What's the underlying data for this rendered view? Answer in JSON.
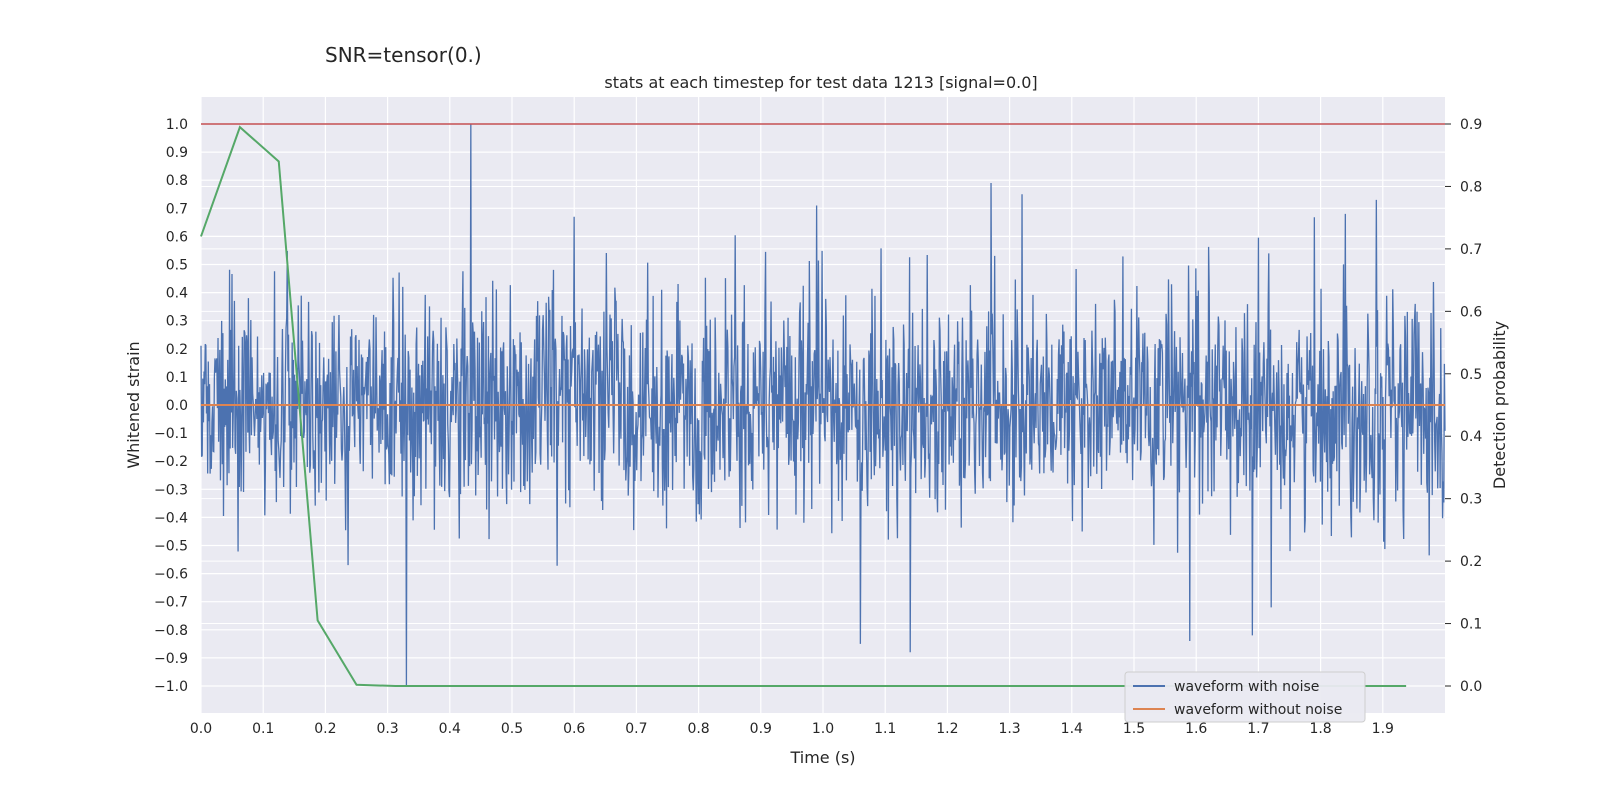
{
  "chart_data": {
    "type": "line",
    "suptitle": "SNR=tensor(0.)",
    "title": "stats at each timestep for test data 1213 [signal=0.0]",
    "xlabel": "Time (s)",
    "ylabel": "Whitened strain",
    "y2label": "Detection probability",
    "xlim": [
      0.0,
      2.0
    ],
    "ylim": [
      -1.1,
      1.1
    ],
    "y2lim": [
      -0.04,
      0.94
    ],
    "xticks": [
      "0.0",
      "0.1",
      "0.2",
      "0.3",
      "0.4",
      "0.5",
      "0.6",
      "0.7",
      "0.8",
      "0.9",
      "1.0",
      "1.1",
      "1.2",
      "1.3",
      "1.4",
      "1.5",
      "1.6",
      "1.7",
      "1.8",
      "1.9"
    ],
    "yticks": [
      "1.0",
      "0.9",
      "0.8",
      "0.7",
      "0.6",
      "0.5",
      "0.4",
      "0.3",
      "0.2",
      "0.1",
      "0.0",
      "−0.1",
      "−0.2",
      "−0.3",
      "−0.4",
      "−0.5",
      "−0.6",
      "−0.7",
      "−0.8",
      "−0.9",
      "−1.0"
    ],
    "y2ticks": [
      "0.9",
      "0.8",
      "0.7",
      "0.6",
      "0.5",
      "0.4",
      "0.3",
      "0.2",
      "0.1",
      "0.0"
    ],
    "grid": true,
    "legend_position": "lower-right",
    "series": [
      {
        "name": "waveform with noise",
        "axis": "left",
        "color": "#4c72b0",
        "kind": "noise",
        "samples": 2048,
        "x_range": [
          0.0,
          2.0
        ],
        "typical_amplitude": 0.2,
        "notable_peaks": [
          {
            "x": 0.434,
            "y": 1.0
          },
          {
            "x": 0.33,
            "y": -1.0
          },
          {
            "x": 1.27,
            "y": 0.79
          },
          {
            "x": 1.32,
            "y": 0.75
          },
          {
            "x": 1.06,
            "y": -0.85
          },
          {
            "x": 1.14,
            "y": -0.88
          },
          {
            "x": 1.59,
            "y": -0.84
          },
          {
            "x": 1.69,
            "y": -0.82
          },
          {
            "x": 1.89,
            "y": 0.73
          },
          {
            "x": 1.84,
            "y": 0.68
          },
          {
            "x": 0.99,
            "y": 0.71
          },
          {
            "x": 0.6,
            "y": 0.67
          }
        ]
      },
      {
        "name": "waveform without noise",
        "axis": "left",
        "color": "#dd8452",
        "x": [
          0.0,
          2.0
        ],
        "y": [
          0.0,
          0.0
        ]
      },
      {
        "axis": "right",
        "color": "#55a868",
        "x": [
          0.0,
          0.0625,
          0.125,
          0.1875,
          0.25,
          0.3125,
          0.5,
          1.0,
          1.5,
          1.9375
        ],
        "y": [
          0.72,
          0.895,
          0.84,
          0.105,
          0.002,
          0.0,
          0.0,
          0.0,
          0.0,
          0.0
        ]
      },
      {
        "axis": "left",
        "color": "#c44e52",
        "kind": "hline",
        "y": 1.0
      }
    ]
  }
}
